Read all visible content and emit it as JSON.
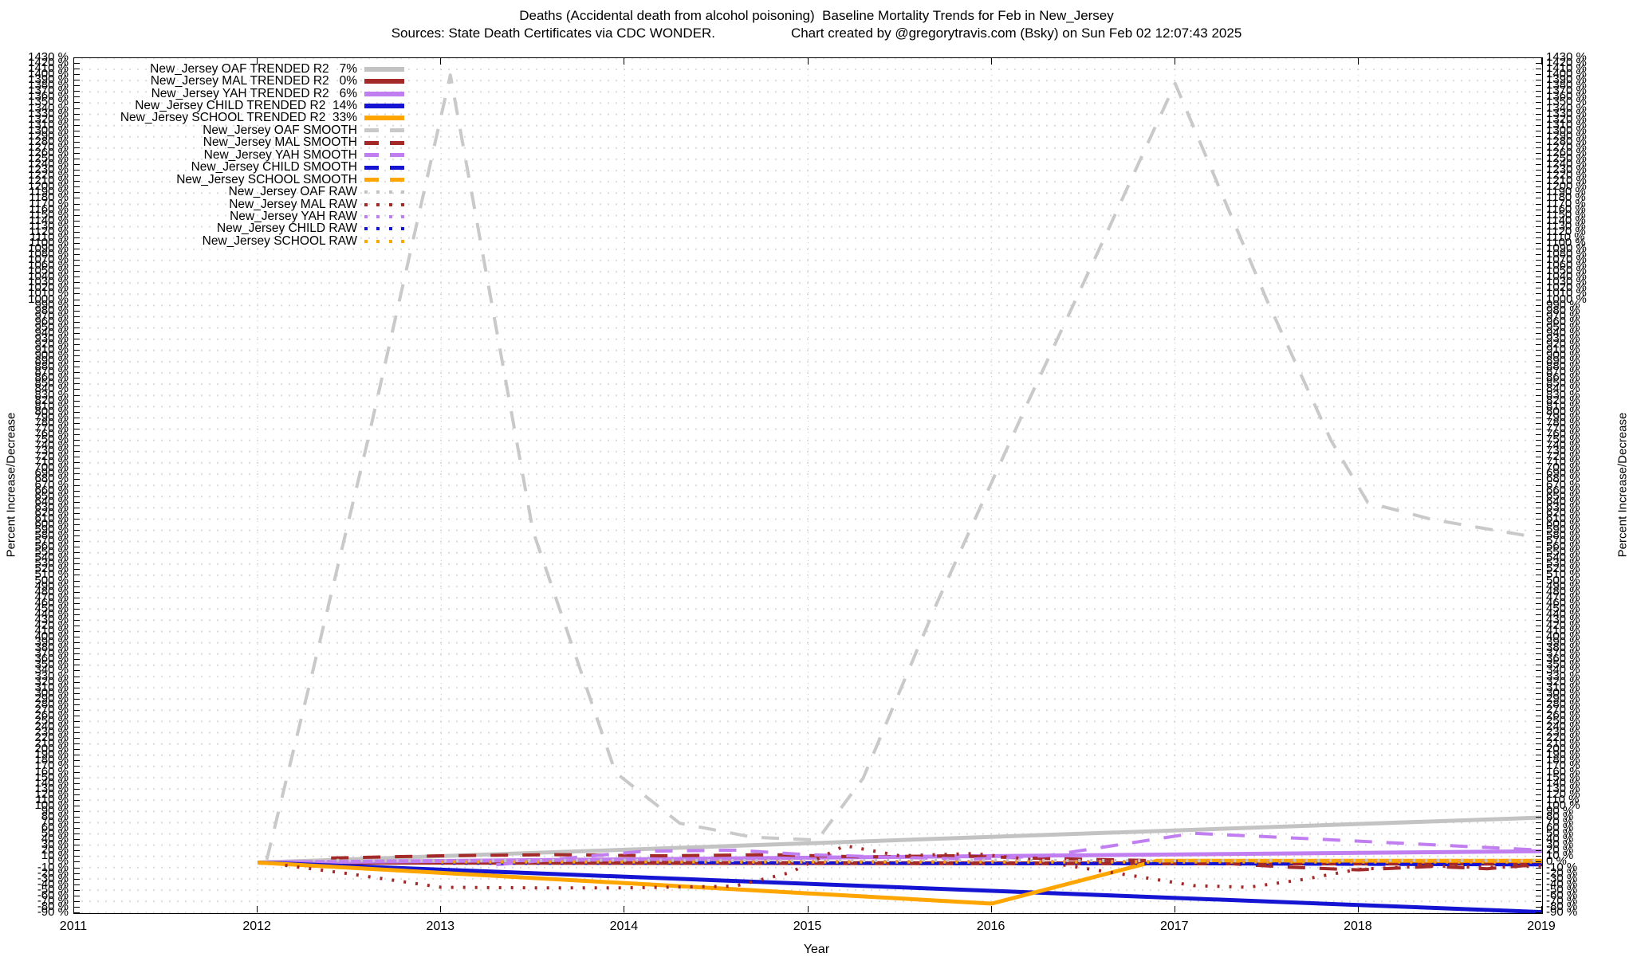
{
  "title": {
    "line1": "Deaths (Accidental death from alcohol poisoning)  Baseline Mortality Trends for Feb in New_Jersey",
    "subtitle_sources": "Sources: State Death Certificates via CDC WONDER.",
    "subtitle_credit": "Chart created by @gregorytravis.com (Bsky) on Sun Feb 02 12:07:43 2025"
  },
  "axes": {
    "x": {
      "label": "Year",
      "min": 2011,
      "max": 2019,
      "ticks": [
        2011,
        2012,
        2013,
        2014,
        2015,
        2016,
        2017,
        2018,
        2019
      ]
    },
    "y": {
      "label_left": "Percent Increase/Decrease",
      "label_right": "Percent Increase/Decrease",
      "min": -90,
      "max": 1430,
      "tick_step": 10,
      "unit": "%",
      "mirrored": true
    }
  },
  "colors": {
    "oaf": "#c3c3c3",
    "oaf_smooth": "#c9c9c9",
    "mal": "#a42a2a",
    "yah": "#c17ef0",
    "child": "#1414d2",
    "school": "#ffa500",
    "grid_dot": "#d7d7d7",
    "year_gridline": "#c9c9c9",
    "axis": "#000000"
  },
  "legend": [
    {
      "label": "New_Jersey OAF TRENDED R2   7%",
      "color": "#c3c3c3",
      "style": "solid"
    },
    {
      "label": "New_Jersey MAL TRENDED R2   0%",
      "color": "#a42a2a",
      "style": "solid"
    },
    {
      "label": "New_Jersey YAH TRENDED R2   6%",
      "color": "#c17ef0",
      "style": "solid"
    },
    {
      "label": "New_Jersey CHILD TRENDED R2  14%",
      "color": "#1414d2",
      "style": "solid"
    },
    {
      "label": "New_Jersey SCHOOL TRENDED R2  33%",
      "color": "#ffa500",
      "style": "solid"
    },
    {
      "label": "New_Jersey OAF SMOOTH",
      "color": "#c9c9c9",
      "style": "dashed"
    },
    {
      "label": "New_Jersey MAL SMOOTH",
      "color": "#a42a2a",
      "style": "dashed"
    },
    {
      "label": "New_Jersey YAH SMOOTH",
      "color": "#c17ef0",
      "style": "dashed"
    },
    {
      "label": "New_Jersey CHILD SMOOTH",
      "color": "#1414d2",
      "style": "dashed"
    },
    {
      "label": "New_Jersey SCHOOL SMOOTH",
      "color": "#ffa500",
      "style": "dashed"
    },
    {
      "label": "New_Jersey OAF RAW",
      "color": "#c3c3c3",
      "style": "dotted"
    },
    {
      "label": "New_Jersey MAL RAW",
      "color": "#a42a2a",
      "style": "dotted"
    },
    {
      "label": "New_Jersey YAH RAW",
      "color": "#c17ef0",
      "style": "dotted"
    },
    {
      "label": "New_Jersey CHILD RAW",
      "color": "#1414d2",
      "style": "dotted"
    },
    {
      "label": "New_Jersey SCHOOL RAW",
      "color": "#ffa500",
      "style": "dotted"
    }
  ],
  "chart_data": {
    "type": "line",
    "title": "Deaths (Accidental death from alcohol poisoning)  Baseline Mortality Trends for Feb in New_Jersey",
    "xlabel": "Year",
    "ylabel": "Percent Increase/Decrease",
    "xlim": [
      2011,
      2019
    ],
    "ylim": [
      -90,
      1430
    ],
    "grid": true,
    "legend_position": "top-left",
    "r2_values": {
      "OAF": "7%",
      "MAL": "0%",
      "YAH": "6%",
      "CHILD": "14%",
      "SCHOOL": "33%"
    },
    "series": [
      {
        "name": "New_Jersey OAF TRENDED",
        "style": "solid",
        "color": "#c3c3c3",
        "points": [
          [
            2012,
            0
          ],
          [
            2019,
            80
          ]
        ]
      },
      {
        "name": "New_Jersey MAL TRENDED",
        "style": "solid",
        "color": "#a42a2a",
        "points": [
          [
            2012,
            0
          ],
          [
            2019,
            -2
          ]
        ]
      },
      {
        "name": "New_Jersey YAH TRENDED",
        "style": "solid",
        "color": "#c17ef0",
        "points": [
          [
            2012,
            0
          ],
          [
            2019,
            20
          ]
        ]
      },
      {
        "name": "New_Jersey CHILD TRENDED",
        "style": "solid",
        "color": "#1414d2",
        "points": [
          [
            2012,
            0
          ],
          [
            2019,
            -88
          ]
        ]
      },
      {
        "name": "New_Jersey SCHOOL TRENDED",
        "style": "solid",
        "color": "#ffa500",
        "points": [
          [
            2012,
            0
          ],
          [
            2016,
            -73
          ],
          [
            2016.9,
            3
          ],
          [
            2019,
            3
          ]
        ]
      },
      {
        "name": "New_Jersey OAF SMOOTH",
        "style": "dashed",
        "color": "#c9c9c9",
        "points": [
          [
            2012.05,
            5
          ],
          [
            2012.3,
            340
          ],
          [
            2012.6,
            750
          ],
          [
            2013.05,
            1400
          ],
          [
            2013.5,
            590
          ],
          [
            2013.95,
            160
          ],
          [
            2014.3,
            70
          ],
          [
            2014.7,
            45
          ],
          [
            2015.05,
            40
          ],
          [
            2015.3,
            150
          ],
          [
            2015.7,
            460
          ],
          [
            2016.2,
            820
          ],
          [
            2016.6,
            1100
          ],
          [
            2017,
            1385
          ],
          [
            2017.5,
            1000
          ],
          [
            2017.85,
            750
          ],
          [
            2018.05,
            640
          ],
          [
            2018.4,
            610
          ],
          [
            2018.97,
            578
          ]
        ]
      },
      {
        "name": "New_Jersey MAL SMOOTH",
        "style": "dashed",
        "color": "#a42a2a",
        "points": [
          [
            2012.4,
            8
          ],
          [
            2013,
            12
          ],
          [
            2013.6,
            14
          ],
          [
            2014.2,
            12
          ],
          [
            2014.8,
            14
          ],
          [
            2015.3,
            10
          ],
          [
            2015.8,
            12
          ],
          [
            2016.3,
            7
          ],
          [
            2016.8,
            4
          ],
          [
            2017.2,
            0
          ],
          [
            2017.6,
            -8
          ],
          [
            2018,
            -13
          ],
          [
            2018.4,
            -7
          ],
          [
            2018.7,
            -11
          ],
          [
            2019,
            -3
          ]
        ]
      },
      {
        "name": "New_Jersey YAH SMOOTH",
        "style": "dashed",
        "color": "#c17ef0",
        "points": [
          [
            2013.3,
            -4
          ],
          [
            2013.7,
            8
          ],
          [
            2014.1,
            20
          ],
          [
            2014.6,
            22
          ],
          [
            2015,
            14
          ],
          [
            2015.5,
            9
          ],
          [
            2015.9,
            6
          ],
          [
            2016.3,
            12
          ],
          [
            2016.7,
            32
          ],
          [
            2017.1,
            52
          ],
          [
            2017.5,
            46
          ],
          [
            2018,
            38
          ],
          [
            2018.5,
            30
          ],
          [
            2019,
            22
          ]
        ]
      },
      {
        "name": "New_Jersey CHILD SMOOTH",
        "style": "dashed",
        "color": "#1414d2",
        "points": [
          [
            2014.4,
            0
          ],
          [
            2015.2,
            -1
          ],
          [
            2016,
            -2
          ],
          [
            2017,
            -2
          ],
          [
            2018,
            -3
          ],
          [
            2019,
            -4
          ]
        ]
      },
      {
        "name": "New_Jersey SCHOOL SMOOTH",
        "style": "dashed",
        "color": "#ffa500",
        "points": [
          [
            2016.9,
            3
          ],
          [
            2019,
            3
          ]
        ]
      },
      {
        "name": "New_Jersey OAF RAW",
        "style": "dotted",
        "color": "#c3c3c3",
        "points": [
          [
            2012.3,
            4
          ],
          [
            2013,
            3
          ],
          [
            2014,
            4
          ],
          [
            2015,
            3
          ],
          [
            2016,
            4
          ],
          [
            2017,
            3
          ],
          [
            2018,
            4
          ],
          [
            2019,
            3
          ]
        ]
      },
      {
        "name": "New_Jersey MAL RAW",
        "style": "dotted",
        "color": "#a42a2a",
        "points": [
          [
            2012.15,
            -5
          ],
          [
            2012.5,
            -20
          ],
          [
            2013,
            -44
          ],
          [
            2013.5,
            -45
          ],
          [
            2014,
            -45
          ],
          [
            2014.6,
            -42
          ],
          [
            2014.9,
            -18
          ],
          [
            2015.2,
            30
          ],
          [
            2015.5,
            12
          ],
          [
            2015.9,
            16
          ],
          [
            2016.2,
            6
          ],
          [
            2016.5,
            -10
          ],
          [
            2016.8,
            -25
          ],
          [
            2017.1,
            -41
          ],
          [
            2017.4,
            -44
          ],
          [
            2017.7,
            -30
          ],
          [
            2018,
            -12
          ],
          [
            2018.4,
            -6
          ],
          [
            2018.7,
            -9
          ],
          [
            2019,
            -6
          ]
        ]
      },
      {
        "name": "New_Jersey YAH RAW",
        "style": "dotted",
        "color": "#c17ef0",
        "points": [
          [
            2013,
            2
          ],
          [
            2019,
            2
          ]
        ]
      },
      {
        "name": "New_Jersey CHILD RAW",
        "style": "dotted",
        "color": "#1414d2",
        "points": [
          [
            2013,
            -1
          ],
          [
            2019,
            -1
          ]
        ]
      },
      {
        "name": "New_Jersey SCHOOL RAW",
        "style": "dotted",
        "color": "#ffa500",
        "points": [
          [
            2013,
            1
          ],
          [
            2019,
            1
          ]
        ]
      }
    ]
  }
}
